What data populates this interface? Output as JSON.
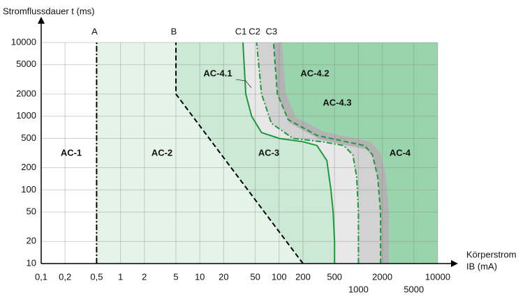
{
  "chart_data": {
    "type": "line",
    "y_label": "Stromflussdauer t (ms)",
    "x_label": "Körperstrom",
    "x_unit_label": "IB (mA)",
    "x_scale": "log",
    "y_scale": "log",
    "grid": true,
    "xlim": [
      0.1,
      10000
    ],
    "xticks": [
      {
        "value": 0.1,
        "label": "0,1"
      },
      {
        "value": 0.2,
        "label": "0,2"
      },
      {
        "value": 0.5,
        "label": "0,5"
      },
      1,
      2,
      5,
      10,
      20,
      50,
      100,
      200,
      500,
      1000,
      2000,
      5000,
      10000
    ],
    "ylim": [
      10,
      10000
    ],
    "yticks": [
      10,
      20,
      50,
      100,
      200,
      500,
      1000,
      2000,
      5000,
      10000
    ],
    "series": [
      {
        "name": "A",
        "color": "#000000",
        "style": "dashdot",
        "x": [
          0.5,
          0.5
        ],
        "values": [
          10,
          10000
        ]
      },
      {
        "name": "B",
        "color": "#000000",
        "style": "dashed",
        "x": [
          200,
          5,
          5
        ],
        "values": [
          10,
          2000,
          10000
        ]
      },
      {
        "name": "C1",
        "color": "#1a9a3c",
        "style": "solid",
        "x": [
          500,
          500,
          480,
          450,
          400,
          300,
          200,
          100,
          60,
          45,
          38,
          35
        ],
        "values": [
          10,
          20,
          50,
          100,
          250,
          400,
          450,
          500,
          600,
          1000,
          2000,
          10000
        ]
      },
      {
        "name": "C2",
        "color": "#1a9a3c",
        "style": "dashdot",
        "x": [
          1000,
          1000,
          950,
          850,
          650,
          350,
          150,
          80,
          60,
          52
        ],
        "values": [
          10,
          50,
          150,
          300,
          400,
          450,
          500,
          800,
          2000,
          10000
        ]
      },
      {
        "name": "C3",
        "color": "#1a9a3c",
        "style": "dashed",
        "x": [
          1900,
          1900,
          1750,
          1500,
          1200,
          700,
          300,
          130,
          95,
          85
        ],
        "values": [
          10,
          50,
          150,
          300,
          400,
          450,
          550,
          900,
          2000,
          10000
        ]
      }
    ],
    "zones": [
      {
        "label": "AC-1",
        "color": "#ffffff"
      },
      {
        "label": "AC-2",
        "color": "#e5f4e9"
      },
      {
        "label": "AC-3",
        "color": "#cbe9d4"
      },
      {
        "label": "AC-4.1",
        "color": "#e8e8e8"
      },
      {
        "label": "AC-4.2",
        "color": "#d2d2d2"
      },
      {
        "label": "AC-4",
        "color": "#9ad4ad"
      },
      {
        "label": "AC-4.3",
        "color": "#b3b3b3"
      }
    ]
  }
}
